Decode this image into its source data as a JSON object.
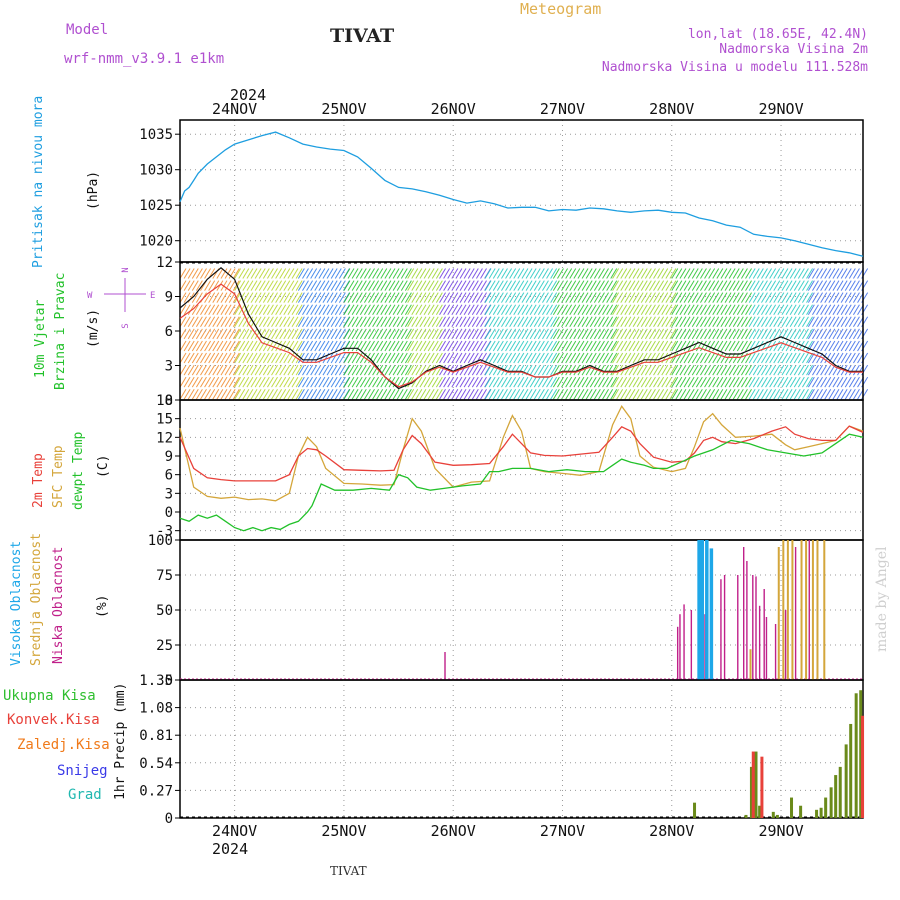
{
  "header": {
    "model_label": "Model",
    "model_name": "wrf-nmm_v3.9.1  e1km",
    "station": "TIVAT",
    "title": "Meteogram",
    "coords": "lon,lat (18.65E, 42.4N)",
    "altitude": "Nadmorska Visina 2m",
    "model_altitude": "Nadmorska Visina u modelu 111.528m",
    "footer_station": "TIVAT",
    "watermark": "made by Angel"
  },
  "colors": {
    "pressure": "#1e9ee0",
    "temp2m": "#e8413a",
    "sfctemp": "#d4a63b",
    "dewpt": "#22c12a",
    "cloud_high": "#1ea7e8",
    "cloud_mid": "#d4a63b",
    "cloud_low": "#c0208a",
    "rain_total": "#2fbf2f",
    "rain_conv": "#e8413a",
    "rain_frozen": "#f07a1a",
    "snow": "#3a3ae8",
    "hail": "#20b8b0",
    "label_purple": "#b050d0",
    "title_gold": "#e0b050"
  },
  "time_axis": {
    "year": "2024",
    "days": [
      "24NOV",
      "25NOV",
      "26NOV",
      "27NOV",
      "28NOV",
      "29NOV"
    ],
    "start_hour": 0,
    "end_hour": 150,
    "day_hours": [
      12,
      36,
      60,
      84,
      108,
      132
    ]
  },
  "panels": {
    "pressure": {
      "label": "Pritisak na nivou mora",
      "unit": "(hPa)",
      "ylim": [
        1017,
        1037
      ],
      "ticks": [
        1020,
        1025,
        1030,
        1035
      ]
    },
    "wind": {
      "label_line1": "10m Vjetar",
      "label_line2": "Brzina i Pravac",
      "unit": "(m/s)",
      "ylim": [
        0,
        12
      ],
      "ticks": [
        0,
        3,
        6,
        9,
        12
      ],
      "compass": {
        "n": "N",
        "w": "W",
        "e": "E",
        "s": "S"
      }
    },
    "temperature": {
      "label_temp": "2m Temp",
      "label_sfc": "SFC Temp",
      "label_dew": "dewpt Temp",
      "unit": "(C)",
      "ylim": [
        -4.5,
        18
      ],
      "ticks": [
        -3,
        0,
        3,
        6,
        9,
        12,
        15,
        18
      ]
    },
    "clouds": {
      "label_high": "Visoka Oblacnost",
      "label_mid": "Srednja Oblacnost",
      "label_low": "Niska Oblacnost",
      "unit": "(%)",
      "ylim": [
        0,
        100
      ],
      "ticks": [
        0,
        25,
        50,
        75,
        100
      ]
    },
    "precip": {
      "legend": [
        "Ukupna Kisa",
        "Konvek.Kisa",
        "Zaledj.Kisa",
        "Snijeg",
        "Grad"
      ],
      "unit": "1hr Precip (mm)",
      "ylim": [
        0,
        1.35
      ],
      "ticks": [
        0,
        0.27,
        0.54,
        0.81,
        1.08,
        1.35
      ],
      "tick_labels": [
        "0",
        "0.27",
        "0.54",
        "0.81",
        "1.08",
        "1.35"
      ]
    }
  },
  "chart_data": {
    "type": "line",
    "title": "Meteogram",
    "x_unit": "hours from 24NOV 00Z",
    "pressure_hpa": {
      "x": [
        0,
        1,
        2,
        3,
        4,
        6,
        8,
        10,
        12,
        15,
        18,
        21,
        24,
        27,
        30,
        33,
        36,
        39,
        42,
        45,
        48,
        51,
        54,
        57,
        60,
        63,
        66,
        69,
        72,
        75,
        78,
        81,
        84,
        87,
        90,
        93,
        96,
        99,
        102,
        105,
        108,
        111,
        114,
        117,
        120,
        123,
        126,
        129,
        132,
        135,
        138,
        141,
        144,
        147,
        150
      ],
      "values": [
        1025.5,
        1027,
        1027.5,
        1028.5,
        1029.5,
        1030.8,
        1031.8,
        1032.8,
        1033.6,
        1034.2,
        1034.8,
        1035.3,
        1034.5,
        1033.6,
        1033.2,
        1032.9,
        1032.7,
        1031.8,
        1030.2,
        1028.5,
        1027.5,
        1027.3,
        1026.9,
        1026.4,
        1025.8,
        1025.3,
        1025.6,
        1025.2,
        1024.6,
        1024.7,
        1024.7,
        1024.2,
        1024.4,
        1024.3,
        1024.6,
        1024.5,
        1024.2,
        1024.0,
        1024.2,
        1024.3,
        1024.0,
        1023.9,
        1023.2,
        1022.8,
        1022.2,
        1021.9,
        1020.9,
        1020.6,
        1020.4,
        1020.0,
        1019.5,
        1019.0,
        1018.6,
        1018.3,
        1017.8
      ]
    },
    "wind_ms": {
      "x": [
        0,
        3,
        6,
        9,
        12,
        15,
        18,
        21,
        24,
        27,
        30,
        33,
        36,
        39,
        42,
        45,
        48,
        51,
        54,
        57,
        60,
        63,
        66,
        69,
        72,
        75,
        78,
        81,
        84,
        87,
        90,
        93,
        96,
        99,
        102,
        105,
        108,
        111,
        114,
        117,
        120,
        123,
        126,
        129,
        132,
        135,
        138,
        141,
        144,
        147,
        150
      ],
      "values": [
        8,
        9,
        10.5,
        11.5,
        10.5,
        7.5,
        5.5,
        5,
        4.5,
        3.5,
        3.5,
        4,
        4.5,
        4.5,
        3.5,
        2,
        1,
        1.5,
        2.5,
        3,
        2.5,
        3,
        3.5,
        3,
        2.5,
        2.5,
        2,
        2,
        2.5,
        2.5,
        3,
        2.5,
        2.5,
        3,
        3.5,
        3.5,
        4,
        4.5,
        5,
        4.5,
        4,
        4,
        4.5,
        5,
        5.5,
        5,
        4.5,
        4,
        3,
        2.5,
        2.5
      ]
    },
    "temp2m_c": {
      "x": [
        0,
        3,
        6,
        9,
        12,
        15,
        18,
        21,
        24,
        26,
        28,
        30,
        32,
        36,
        40,
        44,
        47,
        49,
        51,
        53,
        56,
        60,
        64,
        68,
        71,
        73,
        75,
        77,
        80,
        84,
        88,
        92,
        95,
        97,
        99,
        101,
        104,
        108,
        111,
        113,
        115,
        117,
        119,
        122,
        126,
        130,
        133,
        135,
        138,
        141,
        144,
        147,
        150
      ],
      "values": [
        12,
        7,
        5.5,
        5.2,
        5,
        5,
        5,
        5,
        6,
        9,
        10.2,
        10,
        9,
        6.8,
        6.7,
        6.6,
        6.7,
        10,
        12.3,
        11,
        8,
        7.5,
        7.6,
        7.8,
        10.5,
        12.5,
        11,
        9.5,
        9.1,
        9,
        9.3,
        9.6,
        12,
        13.7,
        13,
        11,
        8.8,
        8,
        8.2,
        9.5,
        11.5,
        12,
        11.3,
        11,
        11.8,
        13,
        13.7,
        12.5,
        11.8,
        11.5,
        11.5,
        13.8,
        12.8
      ]
    },
    "sfctemp_c": {
      "x": [
        0,
        3,
        6,
        9,
        12,
        15,
        18,
        21,
        24,
        26,
        28,
        30,
        32,
        36,
        40,
        44,
        47,
        49,
        51,
        53,
        56,
        60,
        64,
        68,
        71,
        73,
        75,
        77,
        80,
        84,
        88,
        92,
        95,
        97,
        99,
        101,
        104,
        108,
        111,
        113,
        115,
        117,
        119,
        122,
        126,
        130,
        133,
        135,
        138,
        141,
        144,
        147,
        150
      ],
      "values": [
        13.5,
        4,
        2.5,
        2.2,
        2.4,
        2,
        2.1,
        1.8,
        3,
        9,
        12,
        10.5,
        7,
        4.6,
        4.5,
        4.3,
        4.4,
        10,
        15,
        13,
        7,
        4,
        4.8,
        5,
        12,
        15.5,
        13,
        7,
        6.5,
        6.2,
        5.9,
        6.5,
        14,
        17,
        15,
        9,
        7.2,
        6.5,
        7,
        10.5,
        14.5,
        15.8,
        14,
        12,
        12.2,
        12.5,
        10.8,
        10,
        10.5,
        11,
        11.5,
        13.8,
        13
      ]
    },
    "dewpt_c": {
      "x": [
        0,
        2,
        4,
        6,
        8,
        10,
        12,
        14,
        16,
        18,
        20,
        22,
        24,
        26,
        28,
        29,
        31,
        34,
        38,
        42,
        46,
        48,
        50,
        52,
        55,
        58,
        62,
        66,
        68,
        70,
        73,
        77,
        81,
        85,
        89,
        93,
        95,
        97,
        99,
        102,
        104,
        107,
        110,
        113,
        117,
        121,
        125,
        129,
        133,
        137,
        141,
        144,
        147,
        150
      ],
      "values": [
        -1,
        -1.5,
        -0.5,
        -1,
        -0.5,
        -1.5,
        -2.5,
        -3,
        -2.5,
        -3,
        -2.5,
        -2.8,
        -2,
        -1.5,
        0,
        1,
        4.5,
        3.5,
        3.5,
        3.8,
        3.5,
        6,
        5.5,
        4,
        3.5,
        3.8,
        4.2,
        4.5,
        6.5,
        6.5,
        7,
        7,
        6.5,
        6.8,
        6.5,
        6.5,
        7.5,
        8.5,
        8,
        7.5,
        7,
        7,
        8,
        9,
        10,
        11.5,
        11,
        10,
        9.5,
        9,
        9.5,
        11,
        12.5,
        12
      ]
    },
    "clouds_pct": {
      "bars": [
        {
          "kind": "low",
          "x": 58.2,
          "v": 20
        },
        {
          "kind": "low",
          "x": 109.3,
          "v": 38
        },
        {
          "kind": "low",
          "x": 109.8,
          "v": 47
        },
        {
          "kind": "low",
          "x": 110.7,
          "v": 54
        },
        {
          "kind": "low",
          "x": 112.3,
          "v": 50
        },
        {
          "kind": "high",
          "x": 114.0,
          "v": 100
        },
        {
          "kind": "high",
          "x": 114.7,
          "v": 100
        },
        {
          "kind": "low",
          "x": 115.3,
          "v": 47
        },
        {
          "kind": "high",
          "x": 115.7,
          "v": 100
        },
        {
          "kind": "high",
          "x": 116.7,
          "v": 94
        },
        {
          "kind": "low",
          "x": 118.8,
          "v": 72
        },
        {
          "kind": "low",
          "x": 119.6,
          "v": 75
        },
        {
          "kind": "low",
          "x": 122.5,
          "v": 75
        },
        {
          "kind": "low",
          "x": 123.8,
          "v": 95
        },
        {
          "kind": "low",
          "x": 124.5,
          "v": 85
        },
        {
          "kind": "mid",
          "x": 125.3,
          "v": 22
        },
        {
          "kind": "low",
          "x": 125.8,
          "v": 75
        },
        {
          "kind": "low",
          "x": 126.5,
          "v": 74
        },
        {
          "kind": "low",
          "x": 127.3,
          "v": 53
        },
        {
          "kind": "low",
          "x": 128.3,
          "v": 65
        },
        {
          "kind": "low",
          "x": 128.8,
          "v": 45
        },
        {
          "kind": "low",
          "x": 130.8,
          "v": 40
        },
        {
          "kind": "mid",
          "x": 131.5,
          "v": 95
        },
        {
          "kind": "mid",
          "x": 132.5,
          "v": 100
        },
        {
          "kind": "low",
          "x": 133.0,
          "v": 50
        },
        {
          "kind": "mid",
          "x": 133.5,
          "v": 100
        },
        {
          "kind": "mid",
          "x": 134.5,
          "v": 100
        },
        {
          "kind": "low",
          "x": 135.2,
          "v": 95
        },
        {
          "kind": "mid",
          "x": 136.5,
          "v": 100
        },
        {
          "kind": "mid",
          "x": 137.5,
          "v": 100
        },
        {
          "kind": "low",
          "x": 138.2,
          "v": 100
        },
        {
          "kind": "mid",
          "x": 139.0,
          "v": 100
        },
        {
          "kind": "mid",
          "x": 140.0,
          "v": 100
        },
        {
          "kind": "mid",
          "x": 141.5,
          "v": 100
        }
      ]
    },
    "precip_mm": {
      "total": {
        "x": [
          113.0,
          124.3,
          125.5,
          126.5,
          127.3,
          130.3,
          131.2,
          134.3,
          136.3,
          139.8,
          140.8,
          141.8,
          143.0,
          144.0,
          145.0,
          146.3,
          147.3,
          148.5,
          149.5
        ],
        "values": [
          0.15,
          0.03,
          0.5,
          0.65,
          0.12,
          0.06,
          0.03,
          0.2,
          0.12,
          0.08,
          0.1,
          0.2,
          0.3,
          0.42,
          0.5,
          0.72,
          0.92,
          1.22,
          1.25
        ]
      },
      "convective": {
        "x": [
          125.9,
          127.8,
          149.9
        ],
        "values": [
          0.65,
          0.6,
          1.0
        ]
      }
    }
  }
}
